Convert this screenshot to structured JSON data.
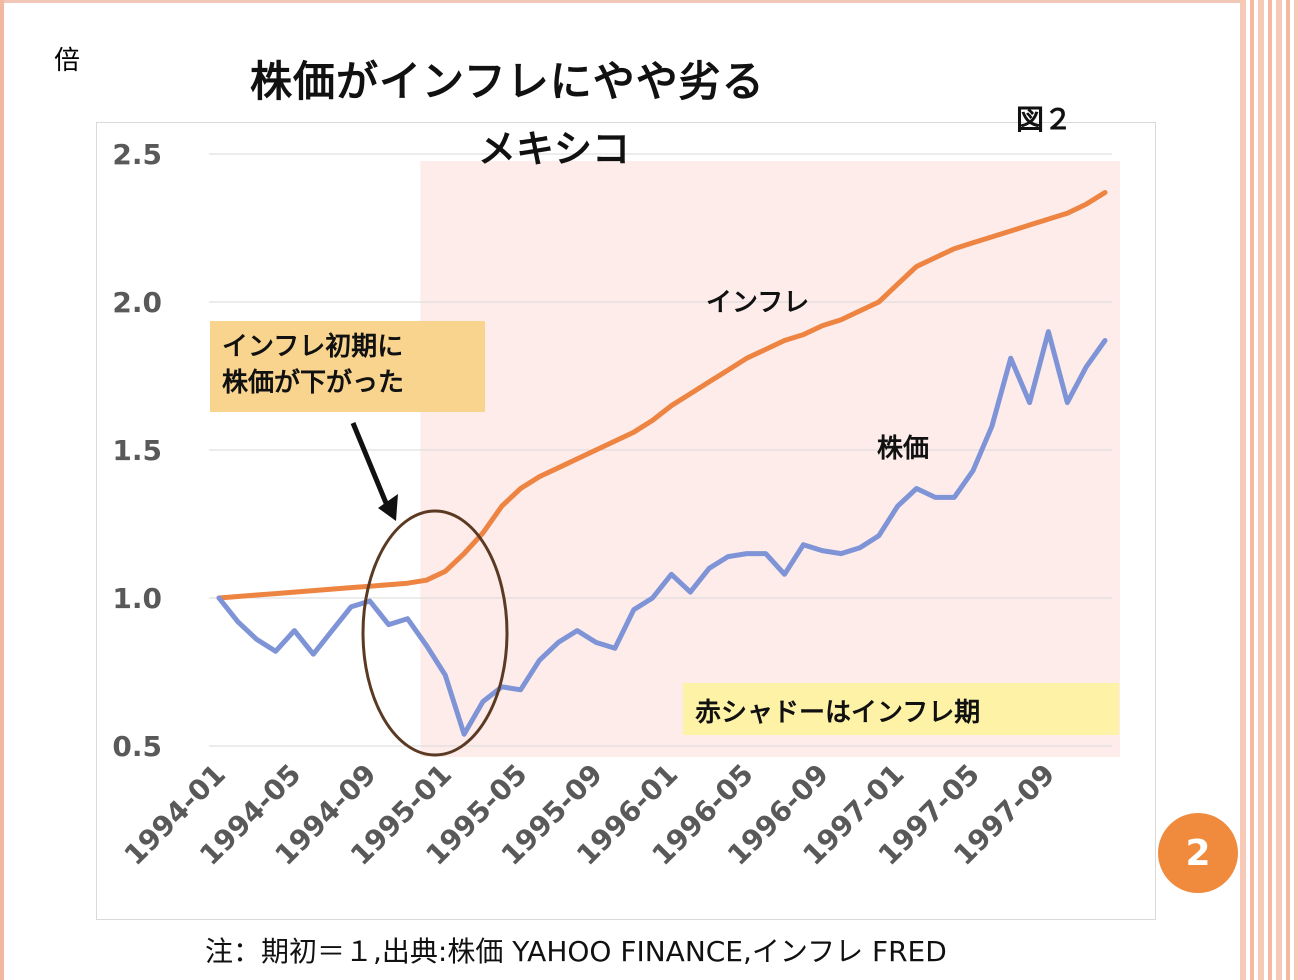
{
  "slide": {
    "unit": "倍",
    "figure_label": "図２",
    "page_number": "2",
    "footnote": "注：期初＝１,出典:株価 YAHOO FINANCE,インフレ FRED"
  },
  "annotations": {
    "callout_line1": "インフレ初期に",
    "callout_line2": "株価が下がった",
    "shading_note": "赤シャドーはインフレ期"
  },
  "chart_data": {
    "type": "line",
    "title": "株価がインフレにやや劣る",
    "subtitle": "メキシコ",
    "ylabel": "倍",
    "ylim": [
      0.5,
      2.5
    ],
    "yticks": [
      "0.5",
      "1.0",
      "1.5",
      "2.0",
      "2.5"
    ],
    "grid": true,
    "x_tick_labels": [
      "1994-01",
      "1994-05",
      "1994-09",
      "1995-01",
      "1995-05",
      "1995-09",
      "1996-01",
      "1996-05",
      "1996-09",
      "1997-01",
      "1997-05",
      "1997-09"
    ],
    "x": [
      "1994-01",
      "1994-02",
      "1994-03",
      "1994-04",
      "1994-05",
      "1994-06",
      "1994-07",
      "1994-08",
      "1994-09",
      "1994-10",
      "1994-11",
      "1994-12",
      "1995-01",
      "1995-02",
      "1995-03",
      "1995-04",
      "1995-05",
      "1995-06",
      "1995-07",
      "1995-08",
      "1995-09",
      "1995-10",
      "1995-11",
      "1995-12",
      "1996-01",
      "1996-02",
      "1996-03",
      "1996-04",
      "1996-05",
      "1996-06",
      "1996-07",
      "1996-08",
      "1996-09",
      "1996-10",
      "1996-11",
      "1996-12",
      "1997-01",
      "1997-02",
      "1997-03",
      "1997-04",
      "1997-05",
      "1997-06",
      "1997-07",
      "1997-08",
      "1997-09",
      "1997-10",
      "1997-11",
      "1997-12"
    ],
    "shaded_period": {
      "start": "1994-12",
      "end": "1997-12",
      "label": "赤シャドーはインフレ期"
    },
    "series": [
      {
        "name": "インフレ",
        "color": "#ee8442",
        "values": [
          1.0,
          1.005,
          1.01,
          1.015,
          1.02,
          1.025,
          1.03,
          1.035,
          1.04,
          1.045,
          1.05,
          1.06,
          1.09,
          1.15,
          1.22,
          1.31,
          1.37,
          1.41,
          1.44,
          1.47,
          1.5,
          1.53,
          1.56,
          1.6,
          1.65,
          1.69,
          1.73,
          1.77,
          1.81,
          1.84,
          1.87,
          1.89,
          1.92,
          1.94,
          1.97,
          2.0,
          2.06,
          2.12,
          2.15,
          2.18,
          2.2,
          2.22,
          2.24,
          2.26,
          2.28,
          2.3,
          2.33,
          2.37
        ]
      },
      {
        "name": "株価",
        "color": "#7f94d6",
        "values": [
          1.0,
          0.92,
          0.86,
          0.82,
          0.89,
          0.81,
          0.89,
          0.97,
          0.99,
          0.91,
          0.93,
          0.84,
          0.74,
          0.54,
          0.65,
          0.7,
          0.69,
          0.79,
          0.85,
          0.89,
          0.85,
          0.83,
          0.96,
          1.0,
          1.08,
          1.02,
          1.1,
          1.14,
          1.15,
          1.15,
          1.08,
          1.18,
          1.16,
          1.15,
          1.17,
          1.21,
          1.31,
          1.37,
          1.34,
          1.34,
          1.43,
          1.58,
          1.81,
          1.66,
          1.9,
          1.66,
          1.78,
          1.87
        ]
      }
    ]
  }
}
